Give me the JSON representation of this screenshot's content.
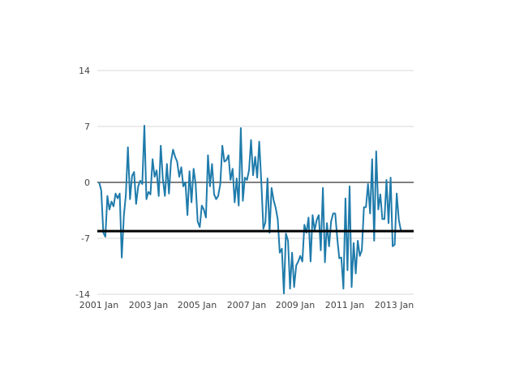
{
  "chart_data": {
    "type": "line",
    "title": "",
    "xlabel": "",
    "ylabel": "",
    "x_start": "2001 Jan",
    "frequency": "monthly",
    "x_tick_labels": [
      "2001 Jan",
      "2003 Jan",
      "2005 Jan",
      "2007 Jan",
      "2009 Jan",
      "2011 Jan",
      "2013 Jan"
    ],
    "y_tick_labels": [
      "14",
      "7",
      "0",
      "-7",
      "-14"
    ],
    "y_ticks": [
      14,
      7,
      0,
      -7,
      -14
    ],
    "ylim": [
      -14,
      14
    ],
    "grid": true,
    "legend": "none",
    "reference_line": {
      "value": -6.1,
      "color": "#000000"
    },
    "zero_line_color": "#000000",
    "grid_color": "#d9d9d9",
    "series": [
      {
        "color": "#1f7bab",
        "values": [
          0,
          -1,
          -6.3,
          -6.8,
          -1.7,
          -3.4,
          -2.4,
          -3,
          -1.4,
          -2,
          -1.4,
          -9.4,
          -4.2,
          -1.5,
          4.4,
          -2.1,
          0.8,
          1.3,
          -2.7,
          -0.5,
          0.2,
          -0.2,
          7.1,
          -2.1,
          -1.2,
          -1.5,
          2.9,
          0.7,
          1.5,
          -1.7,
          4.6,
          0.5,
          -1.7,
          2.3,
          -1.4,
          2.6,
          4.1,
          3.2,
          2.6,
          0.7,
          1.9,
          -0.5,
          0,
          -4.1,
          1.4,
          -2.5,
          1.7,
          -0.2,
          -4.9,
          -5.6,
          -2.9,
          -3.4,
          -4.4,
          3.4,
          -0.5,
          2.3,
          -1.5,
          -2.1,
          -1.7,
          -0.2,
          4.6,
          2.6,
          2.8,
          3.4,
          0.3,
          1.7,
          -2.5,
          0.5,
          -2.9,
          6.8,
          -2.3,
          0.6,
          0.3,
          1.5,
          5.3,
          0.9,
          3.2,
          0.6,
          5.1,
          0,
          -5.8,
          -5,
          0.5,
          -6.3,
          -0.7,
          -2.2,
          -3.2,
          -4.6,
          -8.8,
          -8.3,
          -13.9,
          -6.4,
          -7.3,
          -13.3,
          -8.8,
          -13.1,
          -10.4,
          -9.9,
          -9.2,
          -9.9,
          -5.3,
          -6.3,
          -4.4,
          -9.9,
          -4.1,
          -6,
          -4.7,
          -4.1,
          -8.5,
          -0.7,
          -10,
          -5.1,
          -8,
          -4.9,
          -3.9,
          -3.9,
          -7,
          -9.5,
          -9.4,
          -13.3,
          -2,
          -11,
          -0.5,
          -13.1,
          -7.6,
          -11.4,
          -7.3,
          -9.2,
          -8.5,
          -3.1,
          -3.1,
          -0.2,
          -3.9,
          2.9,
          -7.3,
          3.9,
          -3.4,
          -1.5,
          -4.6,
          -4.6,
          0.3,
          -5.1,
          0.6,
          -8,
          -7.8,
          -1.4,
          -4.7,
          -6
        ]
      }
    ]
  }
}
